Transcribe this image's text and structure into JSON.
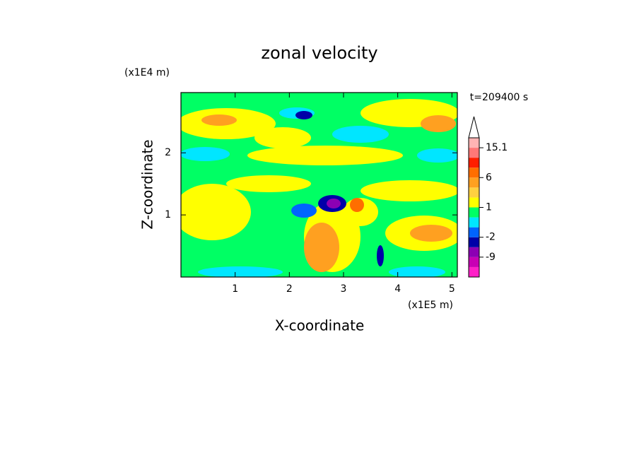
{
  "chart_data": {
    "type": "contour",
    "title": "zonal velocity",
    "xlabel": "X-coordinate",
    "ylabel": "Z-coordinate",
    "x_unit": "(x1E5 m)",
    "y_unit": "(x1E4 m)",
    "time_label": "t=209400 s",
    "xlim": [
      0,
      5.1
    ],
    "xticks": [
      1,
      2,
      3,
      4,
      5
    ],
    "ylim": [
      0,
      2.97
    ],
    "yticks": [
      1,
      2
    ],
    "colorbar": {
      "colors": [
        "#ff20c8",
        "#c800b4",
        "#8c00b4",
        "#0000a8",
        "#0064ff",
        "#00e6ff",
        "#00ff64",
        "#ffff00",
        "#ffd040",
        "#ffa020",
        "#ff6e00",
        "#ff1e00",
        "#ff7878",
        "#ffb4b4"
      ],
      "bounds": [
        null,
        -9,
        null,
        -2,
        null,
        null,
        1,
        null,
        null,
        6,
        null,
        null,
        15.1
      ]
    }
  }
}
